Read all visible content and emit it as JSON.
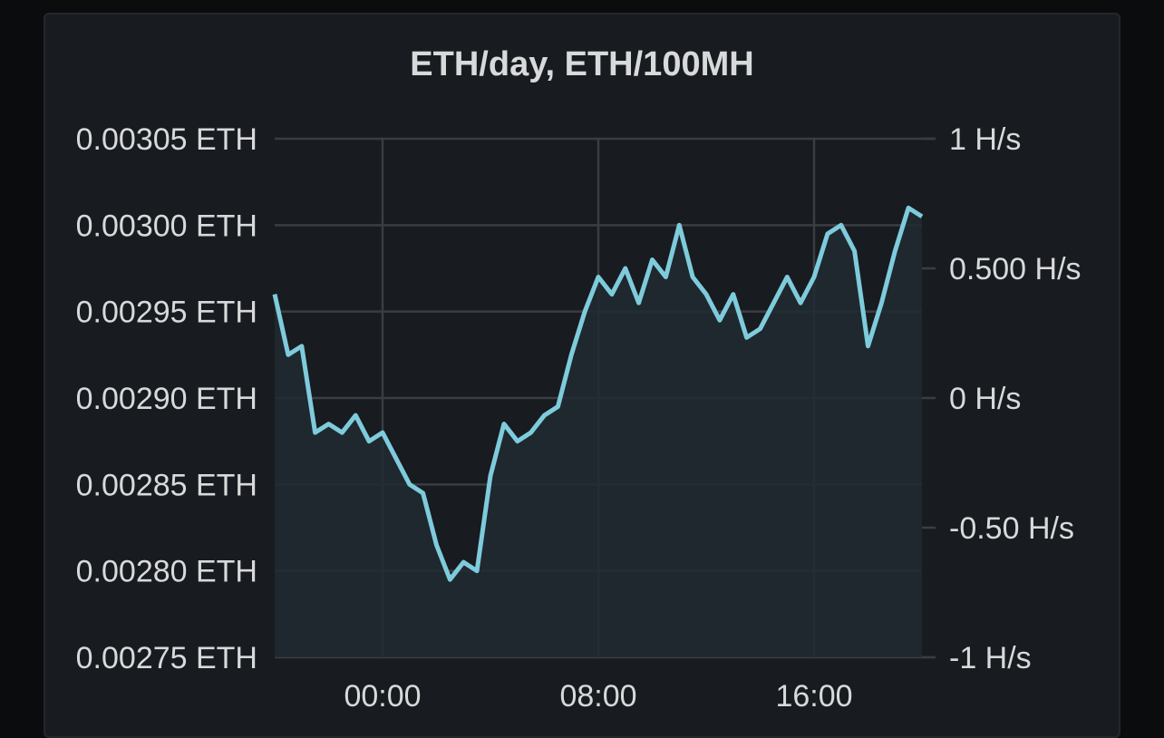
{
  "panel": {
    "title": "ETH/day, ETH/100MH"
  },
  "colors": {
    "line": "#7ecbdc",
    "fill": "#202a31",
    "grid": "#3a3d42",
    "text": "#d8d9da"
  },
  "chart_data": {
    "type": "line",
    "title": "ETH/day, ETH/100MH",
    "xlabel": "",
    "ylabel": "",
    "x_ticks": [
      "00:00",
      "08:00",
      "16:00"
    ],
    "left_axis": {
      "ticks": [
        "0.00305 ETH",
        "0.00300 ETH",
        "0.00295 ETH",
        "0.00290 ETH",
        "0.00285 ETH",
        "0.00280 ETH",
        "0.00275 ETH"
      ],
      "ylim": [
        0.00275,
        0.00305
      ]
    },
    "right_axis": {
      "ticks": [
        "1 H/s",
        "0.500 H/s",
        "0 H/s",
        "-0.50 H/s",
        "-1 H/s"
      ],
      "ylim": [
        -1,
        1
      ]
    },
    "grid": true,
    "x_range_hours": [
      -4,
      20
    ],
    "series": [
      {
        "axis": "left",
        "x_hours": [
          -4.0,
          -3.5,
          -3.0,
          -2.5,
          -2.0,
          -1.5,
          -1.0,
          -0.5,
          0.0,
          0.5,
          1.0,
          1.5,
          2.0,
          2.5,
          3.0,
          3.5,
          4.0,
          4.5,
          5.0,
          5.5,
          6.0,
          6.5,
          7.0,
          7.5,
          8.0,
          8.5,
          9.0,
          9.5,
          10.0,
          10.5,
          11.0,
          11.5,
          12.0,
          12.5,
          13.0,
          13.5,
          14.0,
          14.5,
          15.0,
          15.5,
          16.0,
          16.5,
          17.0,
          17.5,
          18.0,
          18.5,
          19.0,
          19.5,
          20.0
        ],
        "values": [
          0.00296,
          0.002925,
          0.00293,
          0.00288,
          0.002885,
          0.00288,
          0.00289,
          0.002875,
          0.00288,
          0.002865,
          0.00285,
          0.002845,
          0.002815,
          0.002795,
          0.002805,
          0.0028,
          0.002855,
          0.002885,
          0.002875,
          0.00288,
          0.00289,
          0.002895,
          0.002925,
          0.00295,
          0.00297,
          0.00296,
          0.002975,
          0.002955,
          0.00298,
          0.00297,
          0.003,
          0.00297,
          0.00296,
          0.002945,
          0.00296,
          0.002935,
          0.00294,
          0.002955,
          0.00297,
          0.002955,
          0.00297,
          0.002995,
          0.003,
          0.002985,
          0.00293,
          0.002955,
          0.002985,
          0.00301,
          0.003005
        ]
      }
    ]
  }
}
